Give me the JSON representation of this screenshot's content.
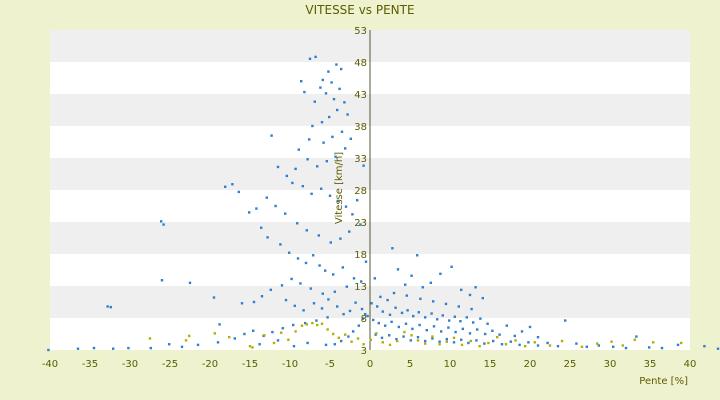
{
  "chart_data": {
    "type": "scatter",
    "title": "VITESSE vs PENTE",
    "xlabel": "Pente [%]",
    "ylabel": "Vitesse [km/h]",
    "xlim": [
      -40,
      40
    ],
    "ylim": [
      3,
      53
    ],
    "x_ticks": [
      -40,
      -35,
      -30,
      -25,
      -20,
      -15,
      -10,
      -5,
      0,
      5,
      10,
      15,
      20,
      25,
      30,
      35,
      40
    ],
    "y_ticks": [
      3,
      8,
      13,
      18,
      23,
      28,
      33,
      38,
      43,
      48,
      53
    ],
    "grid": "horizontal bands",
    "legend": "none",
    "colors": {
      "background": "#eef2cf",
      "plot": "#ffffff",
      "band": "#efefef",
      "axis_text": "#5c5c00",
      "series_main": "#2f7fd1",
      "series_low": "#b0b000"
    },
    "series": [
      {
        "color": "#2f7fd1",
        "points": [
          [
            -7.5,
            48.5
          ],
          [
            -6.8,
            48.8
          ],
          [
            -5.9,
            45.2
          ],
          [
            -5.2,
            46.5
          ],
          [
            -4.8,
            44.8
          ],
          [
            -4.2,
            47.6
          ],
          [
            -3.6,
            46.9
          ],
          [
            -6.2,
            44.0
          ],
          [
            -5.5,
            43.1
          ],
          [
            -4.5,
            42.2
          ],
          [
            -6.9,
            41.8
          ],
          [
            -8.2,
            43.3
          ],
          [
            -8.6,
            45.0
          ],
          [
            -3.8,
            43.8
          ],
          [
            -3.2,
            41.7
          ],
          [
            -4.1,
            40.5
          ],
          [
            -5.1,
            39.4
          ],
          [
            -6.0,
            38.6
          ],
          [
            -7.2,
            38.0
          ],
          [
            -2.8,
            39.8
          ],
          [
            -3.5,
            37.1
          ],
          [
            -4.7,
            36.3
          ],
          [
            -5.8,
            35.4
          ],
          [
            -7.6,
            35.9
          ],
          [
            -8.9,
            34.3
          ],
          [
            -2.4,
            36.0
          ],
          [
            -3.1,
            34.5
          ],
          [
            -4.3,
            33.2
          ],
          [
            -5.4,
            32.5
          ],
          [
            -6.6,
            31.7
          ],
          [
            -7.8,
            32.8
          ],
          [
            -9.3,
            31.3
          ],
          [
            -10.4,
            30.2
          ],
          [
            -11.5,
            31.6
          ],
          [
            -12.3,
            36.5
          ],
          [
            -9.7,
            29.1
          ],
          [
            -8.4,
            28.6
          ],
          [
            -7.3,
            27.4
          ],
          [
            -6.1,
            28.2
          ],
          [
            -5.0,
            27.1
          ],
          [
            -4.0,
            26.3
          ],
          [
            -3.0,
            25.4
          ],
          [
            -2.2,
            24.2
          ],
          [
            -1.6,
            26.4
          ],
          [
            -1.2,
            22.6
          ],
          [
            -0.8,
            31.8
          ],
          [
            -2.6,
            21.5
          ],
          [
            -3.7,
            20.4
          ],
          [
            -4.9,
            19.8
          ],
          [
            -6.4,
            20.9
          ],
          [
            -7.9,
            21.7
          ],
          [
            -9.1,
            22.8
          ],
          [
            -10.6,
            24.3
          ],
          [
            -11.8,
            25.5
          ],
          [
            -12.9,
            26.8
          ],
          [
            -14.2,
            25.1
          ],
          [
            -15.1,
            24.5
          ],
          [
            -16.4,
            27.7
          ],
          [
            -17.2,
            28.9
          ],
          [
            -18.1,
            28.5
          ],
          [
            -26.1,
            23.1
          ],
          [
            -25.8,
            22.6
          ],
          [
            -13.6,
            22.1
          ],
          [
            -12.8,
            20.6
          ],
          [
            -11.2,
            19.5
          ],
          [
            -10.1,
            18.2
          ],
          [
            -9.0,
            17.3
          ],
          [
            -8.0,
            16.6
          ],
          [
            -7.1,
            17.8
          ],
          [
            -6.3,
            16.2
          ],
          [
            -5.6,
            15.4
          ],
          [
            -4.6,
            14.8
          ],
          [
            -3.4,
            15.9
          ],
          [
            -2.0,
            14.2
          ],
          [
            -1.1,
            13.7
          ],
          [
            -0.5,
            16.8
          ],
          [
            -2.9,
            12.9
          ],
          [
            -4.4,
            12.1
          ],
          [
            -5.9,
            11.8
          ],
          [
            -7.4,
            12.6
          ],
          [
            -8.7,
            13.4
          ],
          [
            -9.8,
            14.1
          ],
          [
            -11.0,
            13.1
          ],
          [
            -12.4,
            12.4
          ],
          [
            -13.5,
            11.4
          ],
          [
            -14.5,
            10.5
          ],
          [
            -16.0,
            10.3
          ],
          [
            -19.5,
            11.2
          ],
          [
            -22.5,
            13.5
          ],
          [
            -26.0,
            13.9
          ],
          [
            -32.8,
            9.8
          ],
          [
            -32.4,
            9.7
          ],
          [
            -18.8,
            7.0
          ],
          [
            -10.5,
            10.8
          ],
          [
            -9.4,
            9.9
          ],
          [
            -8.3,
            9.2
          ],
          [
            -7.0,
            10.3
          ],
          [
            -6.0,
            9.5
          ],
          [
            -5.2,
            10.9
          ],
          [
            -4.1,
            9.8
          ],
          [
            -3.3,
            8.6
          ],
          [
            -2.5,
            9.1
          ],
          [
            -1.8,
            10.4
          ],
          [
            -1.0,
            9.4
          ],
          [
            -0.3,
            8.3
          ],
          [
            -5.3,
            8.1
          ],
          [
            -6.7,
            7.6
          ],
          [
            -8.1,
            7.2
          ],
          [
            -9.6,
            6.9
          ],
          [
            -10.9,
            6.4
          ],
          [
            -12.2,
            5.8
          ],
          [
            -13.3,
            5.2
          ],
          [
            -14.6,
            6.0
          ],
          [
            -15.7,
            5.5
          ],
          [
            -16.9,
            4.8
          ],
          [
            -19.0,
            4.2
          ],
          [
            -21.5,
            3.8
          ],
          [
            -23.5,
            3.5
          ],
          [
            -25.1,
            3.9
          ],
          [
            -27.4,
            3.3
          ],
          [
            -30.2,
            3.3
          ],
          [
            -32.1,
            3.2
          ],
          [
            -34.5,
            3.3
          ],
          [
            -36.5,
            3.2
          ],
          [
            -40.2,
            3.0
          ],
          [
            -5.5,
            3.8
          ],
          [
            -7.8,
            4.1
          ],
          [
            -9.5,
            3.6
          ],
          [
            -11.5,
            4.5
          ],
          [
            -13.8,
            3.9
          ],
          [
            0.6,
            14.2
          ],
          [
            1.3,
            11.3
          ],
          [
            2.2,
            10.8
          ],
          [
            2.8,
            18.9
          ],
          [
            3.5,
            15.6
          ],
          [
            4.4,
            13.2
          ],
          [
            5.2,
            14.6
          ],
          [
            5.9,
            17.8
          ],
          [
            6.6,
            12.8
          ],
          [
            7.6,
            13.5
          ],
          [
            8.8,
            14.9
          ],
          [
            10.2,
            16.0
          ],
          [
            11.4,
            12.4
          ],
          [
            12.5,
            11.6
          ],
          [
            13.2,
            12.8
          ],
          [
            14.1,
            11.1
          ],
          [
            0.2,
            10.3
          ],
          [
            0.9,
            9.8
          ],
          [
            1.6,
            9.0
          ],
          [
            2.5,
            8.5
          ],
          [
            3.2,
            9.6
          ],
          [
            4.0,
            8.8
          ],
          [
            4.7,
            9.2
          ],
          [
            5.4,
            8.3
          ],
          [
            6.1,
            8.9
          ],
          [
            6.9,
            8.1
          ],
          [
            7.7,
            8.7
          ],
          [
            8.4,
            7.8
          ],
          [
            9.1,
            8.4
          ],
          [
            9.9,
            7.6
          ],
          [
            10.6,
            8.2
          ],
          [
            11.3,
            7.5
          ],
          [
            12.1,
            8.1
          ],
          [
            12.9,
            7.3
          ],
          [
            13.8,
            7.9
          ],
          [
            14.7,
            7.1
          ],
          [
            0.4,
            7.7
          ],
          [
            1.1,
            7.2
          ],
          [
            1.9,
            6.8
          ],
          [
            2.7,
            7.4
          ],
          [
            3.6,
            6.6
          ],
          [
            4.5,
            7.1
          ],
          [
            5.3,
            6.3
          ],
          [
            6.2,
            6.9
          ],
          [
            7.1,
            6.1
          ],
          [
            8.0,
            6.7
          ],
          [
            8.9,
            5.9
          ],
          [
            9.8,
            6.5
          ],
          [
            10.7,
            5.8
          ],
          [
            11.6,
            6.3
          ],
          [
            12.5,
            5.6
          ],
          [
            13.4,
            6.2
          ],
          [
            14.4,
            5.5
          ],
          [
            15.3,
            6.0
          ],
          [
            16.2,
            5.4
          ],
          [
            17.1,
            6.8
          ],
          [
            18.1,
            5.2
          ],
          [
            19.0,
            5.9
          ],
          [
            20.0,
            6.6
          ],
          [
            21.0,
            5.0
          ],
          [
            0.7,
            5.4
          ],
          [
            1.5,
            4.9
          ],
          [
            2.4,
            5.3
          ],
          [
            3.3,
            4.7
          ],
          [
            4.2,
            5.1
          ],
          [
            5.1,
            4.5
          ],
          [
            6.0,
            5.0
          ],
          [
            6.9,
            4.4
          ],
          [
            7.8,
            4.8
          ],
          [
            8.7,
            4.3
          ],
          [
            9.6,
            4.7
          ],
          [
            10.5,
            4.2
          ],
          [
            11.4,
            4.6
          ],
          [
            12.3,
            4.1
          ],
          [
            13.3,
            4.5
          ],
          [
            14.3,
            4.0
          ],
          [
            15.4,
            4.4
          ],
          [
            16.5,
            3.9
          ],
          [
            17.6,
            4.3
          ],
          [
            18.7,
            3.8
          ],
          [
            19.8,
            4.2
          ],
          [
            21.0,
            3.7
          ],
          [
            22.2,
            4.1
          ],
          [
            23.5,
            3.6
          ],
          [
            24.4,
            7.6
          ],
          [
            25.8,
            4.0
          ],
          [
            27.1,
            3.5
          ],
          [
            28.6,
            3.7
          ],
          [
            30.4,
            3.5
          ],
          [
            32.0,
            3.3
          ],
          [
            33.3,
            5.1
          ],
          [
            34.9,
            3.4
          ],
          [
            36.5,
            3.3
          ],
          [
            38.5,
            3.8
          ],
          [
            41.8,
            3.6
          ],
          [
            43.5,
            3.2
          ],
          [
            3.0,
            11.9
          ],
          [
            4.6,
            11.5
          ],
          [
            6.3,
            11.0
          ],
          [
            7.9,
            10.6
          ],
          [
            9.5,
            10.2
          ],
          [
            11.1,
            9.8
          ],
          [
            12.7,
            9.4
          ],
          [
            -0.6,
            8.6
          ],
          [
            -0.9,
            7.9
          ],
          [
            -1.4,
            6.8
          ],
          [
            -2.1,
            5.9
          ],
          [
            -2.7,
            5.1
          ],
          [
            -3.6,
            4.4
          ],
          [
            -4.4,
            3.9
          ]
        ]
      },
      {
        "color": "#b0b000",
        "points": [
          [
            -27.5,
            4.8
          ],
          [
            -23.0,
            4.5
          ],
          [
            -22.6,
            5.2
          ],
          [
            -19.4,
            5.6
          ],
          [
            -17.6,
            5.0
          ],
          [
            -15.0,
            3.6
          ],
          [
            -14.7,
            3.4
          ],
          [
            -13.2,
            5.3
          ],
          [
            -12.0,
            4.1
          ],
          [
            -11.1,
            5.7
          ],
          [
            -10.2,
            4.6
          ],
          [
            -9.3,
            5.9
          ],
          [
            -8.5,
            6.8
          ],
          [
            -7.9,
            7.0
          ],
          [
            -7.2,
            7.2
          ],
          [
            -6.6,
            6.9
          ],
          [
            -6.0,
            7.1
          ],
          [
            -5.3,
            6.2
          ],
          [
            -4.6,
            5.5
          ],
          [
            -3.9,
            4.9
          ],
          [
            -3.1,
            5.4
          ],
          [
            -2.3,
            4.3
          ],
          [
            -1.5,
            4.8
          ],
          [
            -0.8,
            3.9
          ],
          [
            0.1,
            4.6
          ],
          [
            0.8,
            5.6
          ],
          [
            1.6,
            4.2
          ],
          [
            2.5,
            3.8
          ],
          [
            3.4,
            4.4
          ],
          [
            4.3,
            5.8
          ],
          [
            5.2,
            5.3
          ],
          [
            6.0,
            4.5
          ],
          [
            6.9,
            4.0
          ],
          [
            7.8,
            5.1
          ],
          [
            8.7,
            3.9
          ],
          [
            9.6,
            4.3
          ],
          [
            10.5,
            4.9
          ],
          [
            11.5,
            3.8
          ],
          [
            12.6,
            4.4
          ],
          [
            13.7,
            3.6
          ],
          [
            14.8,
            4.1
          ],
          [
            15.9,
            5.0
          ],
          [
            17.0,
            3.9
          ],
          [
            18.2,
            4.5
          ],
          [
            19.4,
            3.6
          ],
          [
            20.6,
            4.2
          ],
          [
            22.5,
            3.7
          ],
          [
            24.0,
            4.4
          ],
          [
            26.5,
            3.5
          ],
          [
            28.4,
            4.0
          ],
          [
            30.2,
            4.3
          ],
          [
            31.6,
            3.7
          ],
          [
            33.1,
            4.6
          ],
          [
            35.4,
            4.2
          ],
          [
            38.9,
            4.1
          ]
        ]
      }
    ]
  }
}
